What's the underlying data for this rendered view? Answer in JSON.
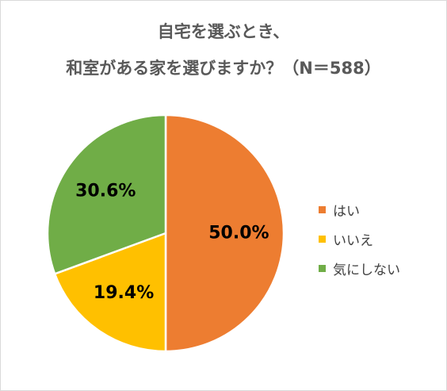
{
  "chart_data": {
    "type": "pie",
    "title": "自宅を選ぶとき、",
    "subtitle": "和室がある家を選びますか？（N＝588）",
    "categories": [
      "はい",
      "いいえ",
      "気にしない"
    ],
    "values": [
      50.0,
      19.4,
      30.6
    ],
    "data_labels": [
      "50.0%",
      "19.4%",
      "30.6%"
    ],
    "colors": [
      "#ed7d31",
      "#ffc000",
      "#70ad47"
    ],
    "legend_position": "right",
    "start_angle_deg": 0,
    "direction": "clockwise"
  }
}
